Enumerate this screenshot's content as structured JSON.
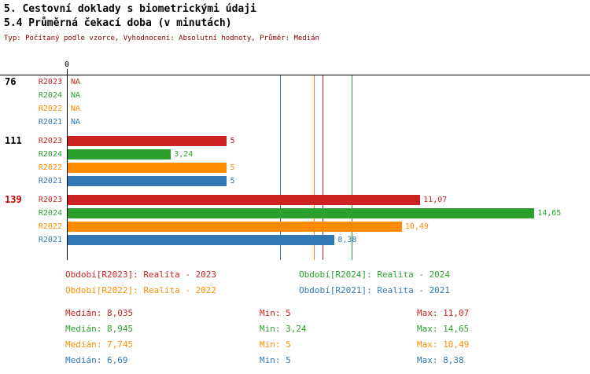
{
  "title": "5. Cestovní doklady s biometrickými údaji",
  "subtitle": "5.4 Průměrná čekací doba (v minutách)",
  "meta": "Typ: Počítaný podle vzorce, Vyhodnocení: Absolutní hodnoty, Průměr: Medián",
  "axis": {
    "zero_label": "0"
  },
  "colors": {
    "R2023": "#cc2222",
    "R2024": "#2ca02c",
    "R2022": "#ff8c00",
    "R2021": "#3179b5",
    "highlight_group": "#cc0000",
    "meta_text": "#8b0000"
  },
  "chart_data": {
    "type": "bar",
    "orientation": "horizontal",
    "title": "5.4 Průměrná čekací doba (v minutách)",
    "xlim": [
      0,
      16.3
    ],
    "grid": false,
    "series_order": [
      "R2023",
      "R2024",
      "R2022",
      "R2021"
    ],
    "groups": [
      {
        "label": "76",
        "label_color": "#000000",
        "bars": [
          {
            "series": "R2023",
            "value": null,
            "text": "NA"
          },
          {
            "series": "R2024",
            "value": null,
            "text": "NA"
          },
          {
            "series": "R2022",
            "value": null,
            "text": "NA"
          },
          {
            "series": "R2021",
            "value": null,
            "text": "NA"
          }
        ]
      },
      {
        "label": "111",
        "label_color": "#000000",
        "bars": [
          {
            "series": "R2023",
            "value": 5,
            "text": "5"
          },
          {
            "series": "R2024",
            "value": 3.24,
            "text": "3,24"
          },
          {
            "series": "R2022",
            "value": 5,
            "text": "5"
          },
          {
            "series": "R2021",
            "value": 5,
            "text": "5"
          }
        ]
      },
      {
        "label": "139",
        "label_color": "#cc0000",
        "bars": [
          {
            "series": "R2023",
            "value": 11.07,
            "text": "11,07"
          },
          {
            "series": "R2024",
            "value": 14.65,
            "text": "14,65"
          },
          {
            "series": "R2022",
            "value": 10.49,
            "text": "10,49"
          },
          {
            "series": "R2021",
            "value": 8.38,
            "text": "8,38"
          }
        ]
      }
    ],
    "median_lines": [
      {
        "series": "R2023",
        "value": 8.035
      },
      {
        "series": "R2024",
        "value": 8.945
      },
      {
        "series": "R2022",
        "value": 7.745
      },
      {
        "series": "R2021",
        "value": 6.69
      }
    ]
  },
  "legend": [
    {
      "series": "R2023",
      "text": "Období[R2023]: Realita - 2023"
    },
    {
      "series": "R2024",
      "text": "Období[R2024]: Realita - 2024"
    },
    {
      "series": "R2022",
      "text": "Období[R2022]: Realita - 2022"
    },
    {
      "series": "R2021",
      "text": "Období[R2021]: Realita - 2021"
    }
  ],
  "stats": [
    {
      "series": "R2023",
      "median": "Medián: 8,035",
      "min": "Min: 5",
      "max": "Max: 11,07"
    },
    {
      "series": "R2024",
      "median": "Medián: 8,945",
      "min": "Min: 3,24",
      "max": "Max: 14,65"
    },
    {
      "series": "R2022",
      "median": "Medián: 7,745",
      "min": "Min: 5",
      "max": "Max: 10,49"
    },
    {
      "series": "R2021",
      "median": "Medián: 6,69",
      "min": "Min: 5",
      "max": "Max: 8,38"
    }
  ]
}
